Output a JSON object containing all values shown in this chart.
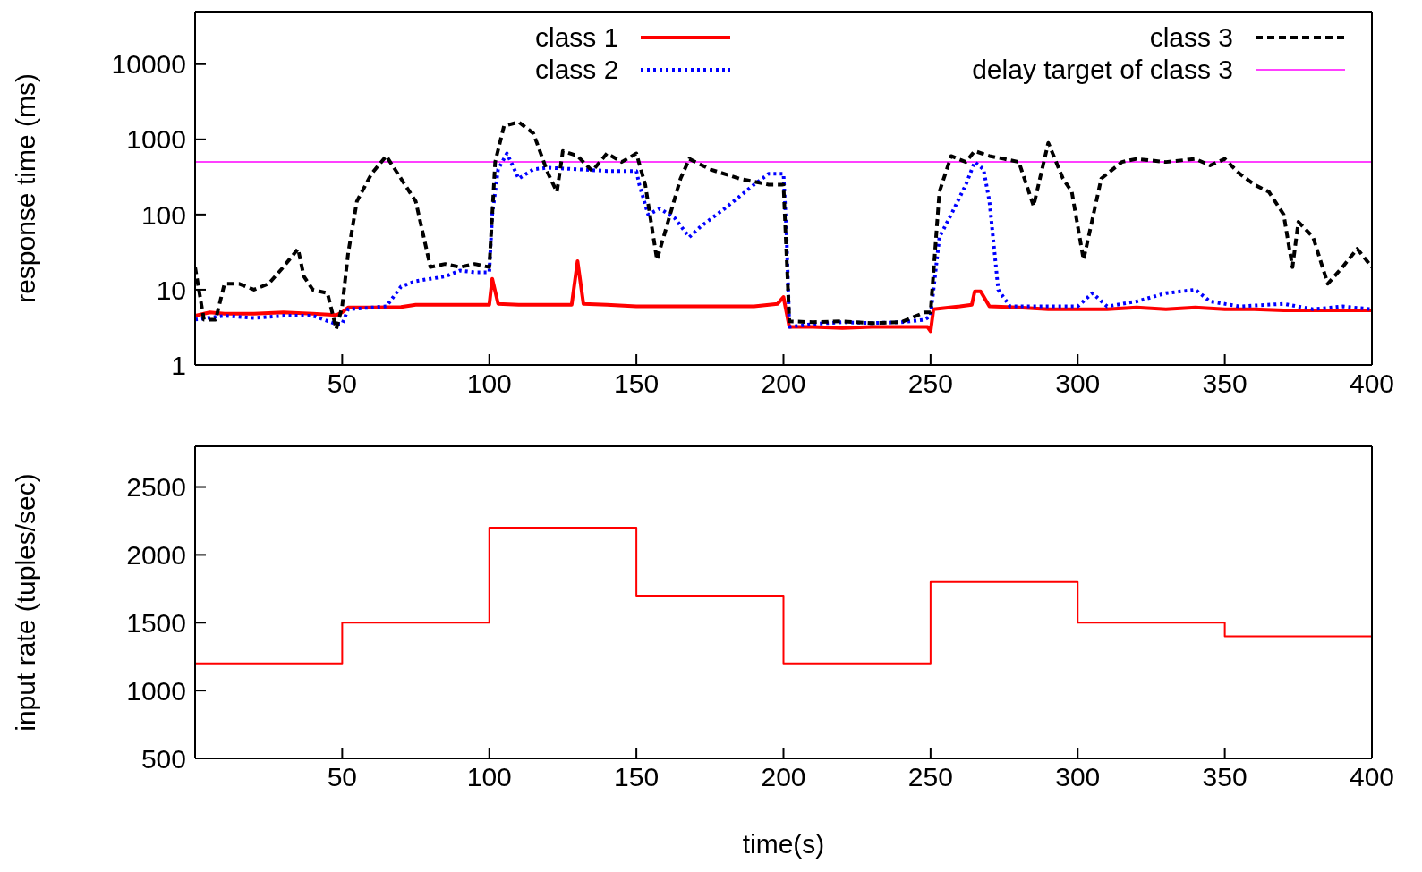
{
  "chart_data": [
    {
      "type": "line",
      "ylabel": "response time (ms)",
      "log": "y",
      "xlim": [
        0,
        400
      ],
      "xticks": [
        50,
        100,
        150,
        200,
        250,
        300,
        350,
        400
      ],
      "ylim": [
        1,
        50000
      ],
      "yticks": [
        1,
        10,
        100,
        1000,
        10000
      ],
      "legend": "top",
      "marker": "none",
      "ref_lines": [
        {
          "axis": "y",
          "value": 500,
          "label": "delay target of class 3",
          "color": "#ff00ff",
          "line_style": "solid"
        }
      ],
      "series": [
        {
          "name": "class 1",
          "color": "#ff0000",
          "line_style": "solid",
          "x": [
            0,
            5,
            10,
            20,
            30,
            40,
            48,
            50,
            52,
            60,
            70,
            75,
            80,
            90,
            100,
            101,
            103,
            110,
            120,
            128,
            130,
            132,
            140,
            150,
            160,
            170,
            180,
            190,
            198,
            200,
            202,
            210,
            220,
            230,
            240,
            249,
            250,
            251,
            260,
            264,
            265,
            267,
            270,
            280,
            290,
            300,
            310,
            320,
            330,
            340,
            350,
            360,
            370,
            380,
            390,
            400
          ],
          "values": [
            4.5,
            5,
            4.8,
            4.8,
            5,
            4.8,
            4.6,
            5,
            5.8,
            5.8,
            5.9,
            6.3,
            6.3,
            6.3,
            6.3,
            14,
            6.5,
            6.3,
            6.3,
            6.3,
            24,
            6.5,
            6.3,
            6,
            6,
            6,
            6,
            6,
            6.5,
            8,
            3.2,
            3.2,
            3.1,
            3.2,
            3.2,
            3.2,
            2.8,
            5.5,
            6,
            6.3,
            9.5,
            9.5,
            6,
            5.8,
            5.5,
            5.5,
            5.5,
            5.8,
            5.5,
            5.8,
            5.5,
            5.5,
            5.3,
            5.3,
            5.3,
            5.3
          ]
        },
        {
          "name": "class 2",
          "color": "#0000ff",
          "line_style": "dotted",
          "x": [
            0,
            10,
            20,
            30,
            40,
            48,
            50,
            52,
            60,
            65,
            70,
            75,
            80,
            85,
            90,
            95,
            100,
            101,
            103,
            106,
            110,
            115,
            120,
            130,
            140,
            150,
            151,
            154,
            158,
            163,
            168,
            172,
            180,
            190,
            195,
            200,
            201,
            202,
            210,
            220,
            230,
            240,
            248,
            250,
            253,
            257,
            262,
            265,
            268,
            270,
            273,
            277,
            285,
            300,
            305,
            310,
            320,
            330,
            340,
            345,
            355,
            370,
            380,
            390,
            400
          ],
          "values": [
            4,
            4.5,
            4.2,
            4.5,
            4.5,
            3.5,
            3.5,
            5.5,
            5.8,
            6,
            11,
            13,
            14,
            15,
            18,
            17,
            17,
            100,
            400,
            650,
            300,
            400,
            420,
            400,
            380,
            380,
            250,
            100,
            120,
            90,
            50,
            70,
            120,
            250,
            350,
            350,
            60,
            3.2,
            3.5,
            3.7,
            3.6,
            3.7,
            4,
            4.5,
            50,
            100,
            250,
            500,
            400,
            150,
            10,
            6,
            6,
            6,
            9,
            6,
            7,
            9,
            10,
            7,
            6,
            6.5,
            5.5,
            6,
            5.5
          ]
        },
        {
          "name": "class 3",
          "color": "#000000",
          "line_style": "dashed",
          "x": [
            0,
            3,
            7,
            10,
            15,
            20,
            25,
            30,
            35,
            37,
            40,
            45,
            48,
            50,
            52,
            55,
            60,
            65,
            70,
            75,
            80,
            85,
            90,
            95,
            100,
            102,
            105,
            110,
            115,
            120,
            123,
            125,
            130,
            135,
            140,
            145,
            150,
            153,
            157,
            165,
            168,
            175,
            185,
            195,
            200,
            202,
            210,
            220,
            230,
            240,
            248,
            250,
            253,
            257,
            262,
            265,
            270,
            275,
            280,
            285,
            290,
            295,
            298,
            302,
            308,
            315,
            320,
            330,
            340,
            345,
            350,
            355,
            360,
            365,
            370,
            373,
            375,
            380,
            385,
            390,
            395,
            400
          ],
          "values": [
            20,
            4,
            4,
            12,
            12,
            10,
            12,
            20,
            35,
            15,
            10,
            9,
            3,
            6,
            30,
            150,
            350,
            600,
            300,
            150,
            20,
            22,
            20,
            22,
            20,
            500,
            1500,
            1700,
            1200,
            350,
            200,
            700,
            600,
            380,
            650,
            500,
            650,
            250,
            25,
            300,
            550,
            400,
            300,
            250,
            250,
            3.8,
            3.7,
            3.8,
            3.6,
            3.7,
            5,
            5,
            200,
            600,
            500,
            700,
            600,
            550,
            500,
            130,
            900,
            300,
            200,
            25,
            300,
            500,
            550,
            500,
            550,
            450,
            550,
            350,
            250,
            200,
            100,
            20,
            80,
            50,
            12,
            20,
            35,
            20
          ]
        }
      ]
    },
    {
      "type": "step",
      "xlabel": "time(s)",
      "ylabel": "input rate (tuples/sec)",
      "xlim": [
        0,
        400
      ],
      "xticks": [
        50,
        100,
        150,
        200,
        250,
        300,
        350,
        400
      ],
      "ylim": [
        500,
        2800
      ],
      "yticks": [
        500,
        1000,
        1500,
        2000,
        2500
      ],
      "legend": false,
      "marker": "none",
      "series": [
        {
          "color": "#ff0000",
          "line_style": "solid",
          "x": [
            0,
            50,
            100,
            150,
            200,
            250,
            300,
            350,
            400
          ],
          "values": [
            1200,
            1500,
            2200,
            1700,
            1200,
            1800,
            1500,
            1400,
            1400
          ]
        }
      ]
    }
  ]
}
